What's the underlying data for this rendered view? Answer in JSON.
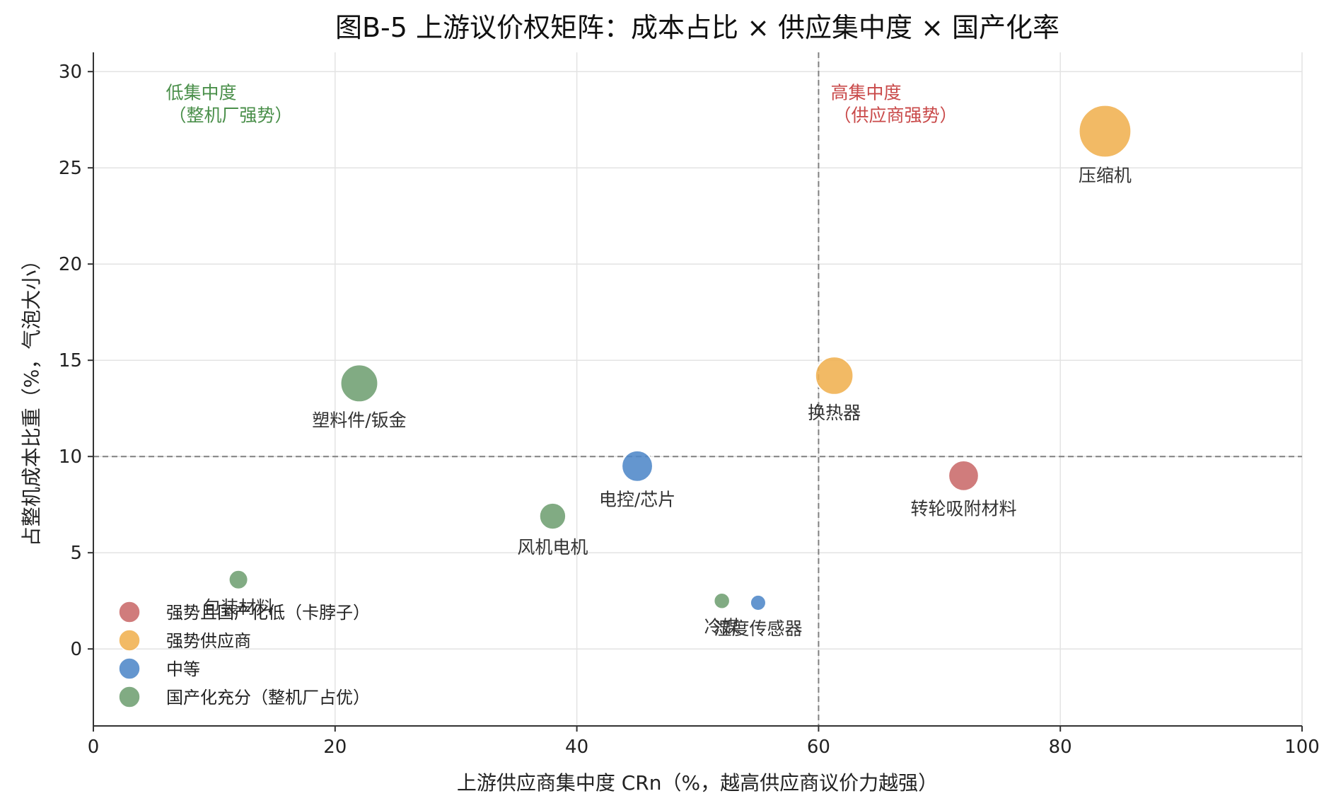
{
  "chart_data": {
    "type": "scatter",
    "title": "图B-5  上游议价权矩阵：成本占比 × 供应集中度 × 国产化率",
    "xlabel": "上游供应商集中度 CRn（%，越高供应商议价力越强）",
    "ylabel": "占整机成本比重（%，气泡大小）",
    "xlim": [
      0,
      100
    ],
    "ylim": [
      -4,
      31
    ],
    "xticks": [
      0,
      20,
      40,
      60,
      80,
      100
    ],
    "yticks": [
      0,
      5,
      10,
      15,
      20,
      25,
      30
    ],
    "grid": true,
    "reference_lines": {
      "x": 60,
      "y": 10
    },
    "quadrant_labels": [
      {
        "lines": [
          "低集中度",
          "（整机厂强势）"
        ],
        "x": 6,
        "y": 28.6,
        "color": "#4a8f4a"
      },
      {
        "lines": [
          "高集中度",
          "（供应商强势）"
        ],
        "x": 61,
        "y": 28.6,
        "color": "#c94a4a"
      }
    ],
    "categories": [
      {
        "name": "强势且国产化低（卡脖子）",
        "color": "#c96a6a"
      },
      {
        "name": "强势供应商",
        "color": "#f0b050"
      },
      {
        "name": "中等",
        "color": "#4f88c8"
      },
      {
        "name": "国产化充分（整机厂占优）",
        "color": "#6f9f72"
      }
    ],
    "legend_position": "lower-left",
    "points": [
      {
        "label": "压缩机",
        "x": 83.7,
        "y": 26.9,
        "category": 1
      },
      {
        "label": "换热器",
        "x": 61.3,
        "y": 14.2,
        "category": 1
      },
      {
        "label": "塑料件/钣金",
        "x": 22,
        "y": 13.8,
        "category": 3
      },
      {
        "label": "电控/芯片",
        "x": 45,
        "y": 9.5,
        "category": 2
      },
      {
        "label": "转轮吸附材料",
        "x": 72,
        "y": 9.0,
        "category": 0
      },
      {
        "label": "风机电机",
        "x": 38,
        "y": 6.9,
        "category": 3
      },
      {
        "label": "包装材料",
        "x": 12,
        "y": 3.6,
        "category": 3
      },
      {
        "label": "冷媒",
        "x": 52,
        "y": 2.5,
        "category": 3
      },
      {
        "label": "湿度传感器",
        "x": 55,
        "y": 2.4,
        "category": 2
      }
    ]
  }
}
